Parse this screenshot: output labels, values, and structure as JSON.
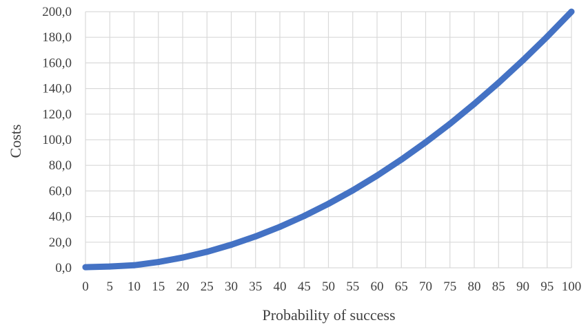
{
  "chart_data": {
    "type": "line",
    "title": "",
    "xlabel": "Probability of success",
    "ylabel": "Costs",
    "x": [
      0,
      5,
      10,
      15,
      20,
      25,
      30,
      35,
      40,
      45,
      50,
      55,
      60,
      65,
      70,
      75,
      80,
      85,
      90,
      95,
      100
    ],
    "x_tick_labels": [
      "0",
      "5",
      "10",
      "15",
      "20",
      "25",
      "30",
      "35",
      "40",
      "45",
      "50",
      "55",
      "60",
      "65",
      "70",
      "75",
      "80",
      "85",
      "90",
      "95",
      "100"
    ],
    "y_tick_labels": [
      "0,0",
      "20,0",
      "40,0",
      "60,0",
      "80,0",
      "100,0",
      "120,0",
      "140,0",
      "160,0",
      "180,0",
      "200,0"
    ],
    "y_ticks": [
      0,
      20,
      40,
      60,
      80,
      100,
      120,
      140,
      160,
      180,
      200
    ],
    "series": [
      {
        "values": [
          0.5,
          1.0,
          2.0,
          4.5,
          8.0,
          12.5,
          18.0,
          24.5,
          32.0,
          40.5,
          50.0,
          60.5,
          72.0,
          84.5,
          98.0,
          112.5,
          128.0,
          144.5,
          162.0,
          180.5,
          200.0
        ],
        "color": "#4472C4"
      }
    ],
    "xlim": [
      0,
      100
    ],
    "ylim": [
      0,
      200
    ],
    "grid": "vertical and horizontal",
    "legend": "none"
  }
}
